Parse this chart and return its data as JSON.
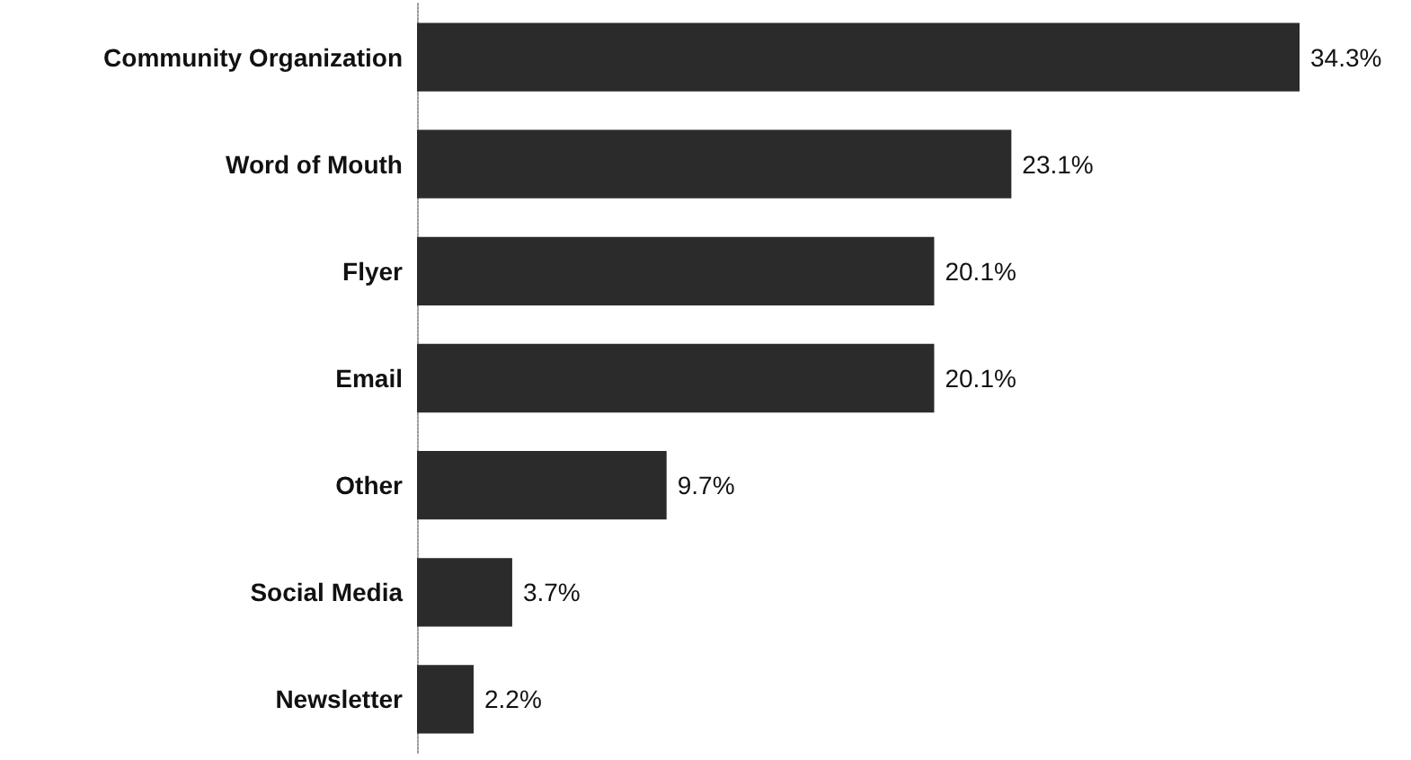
{
  "chart_data": {
    "type": "bar",
    "orientation": "horizontal",
    "categories": [
      "Community Organization",
      "Word of Mouth",
      "Flyer",
      "Email",
      "Other",
      "Social Media",
      "Newsletter"
    ],
    "values": [
      34.3,
      23.1,
      20.1,
      20.1,
      9.7,
      3.7,
      2.2
    ],
    "value_labels": [
      "34.3%",
      "23.1%",
      "20.1%",
      "20.1%",
      "9.7%",
      "3.7%",
      "2.2%"
    ],
    "color": "#2b2b2b",
    "grid": false
  }
}
